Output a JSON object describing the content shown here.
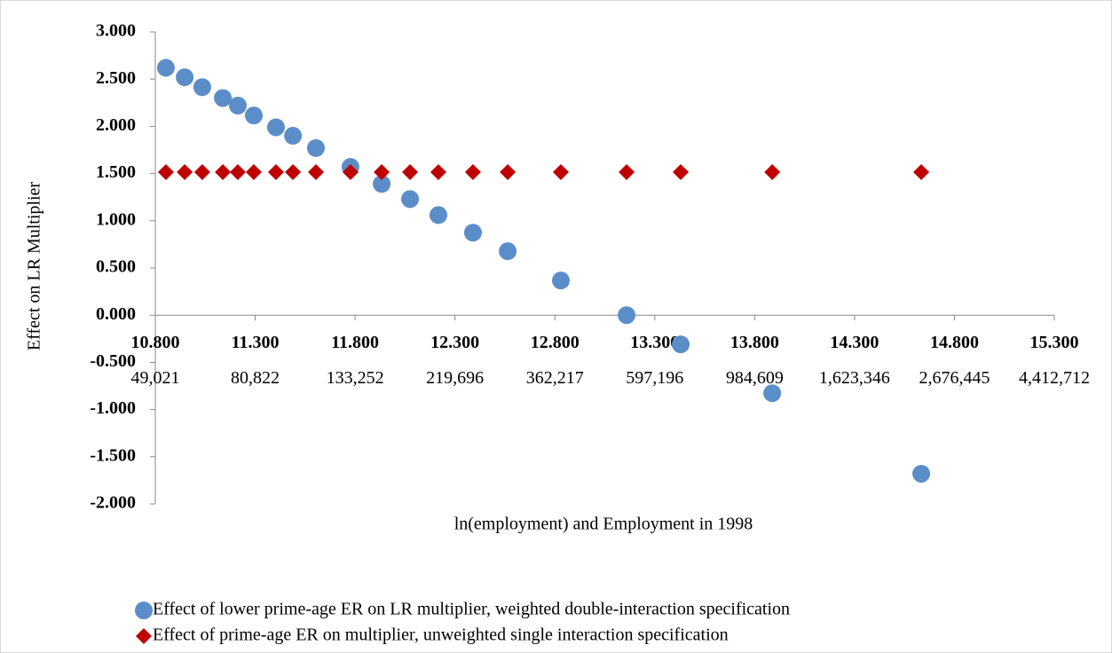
{
  "chart_data": {
    "type": "scatter",
    "x_label": "ln(employment) and Employment in 1998",
    "y_label": "Effect on LR Multiplier",
    "x": [
      10.853,
      10.947,
      11.035,
      11.138,
      11.213,
      11.293,
      11.404,
      11.489,
      11.604,
      11.777,
      11.933,
      12.075,
      12.217,
      12.39,
      12.564,
      12.83,
      13.159,
      13.43,
      13.888,
      14.634
    ],
    "series": [
      {
        "name": "Effect of lower prime-age ER on LR multiplier, weighted double-interaction specification",
        "color": "#5b8ec8",
        "marker": "circle",
        "values": [
          2.62,
          2.52,
          2.415,
          2.3,
          2.22,
          2.115,
          1.99,
          1.9,
          1.77,
          1.57,
          1.39,
          1.23,
          1.06,
          0.874,
          0.677,
          0.367,
          0.0,
          -0.31,
          -0.827,
          -1.68
        ]
      },
      {
        "name": "Effect of prime-age ER on multiplier, unweighted single interaction specification",
        "color": "#c00000",
        "marker": "diamond",
        "values": [
          1.515,
          1.515,
          1.515,
          1.515,
          1.515,
          1.515,
          1.515,
          1.515,
          1.515,
          1.515,
          1.515,
          1.515,
          1.515,
          1.515,
          1.515,
          1.515,
          1.515,
          1.515,
          1.515,
          1.515
        ]
      }
    ],
    "xlim": [
      10.8,
      15.3
    ],
    "xticks": [
      {
        "value": 10.8,
        "label": "10.800"
      },
      {
        "value": 11.3,
        "label": "11.300"
      },
      {
        "value": 11.8,
        "label": "11.800"
      },
      {
        "value": 12.3,
        "label": "12.300"
      },
      {
        "value": 12.8,
        "label": "12.800"
      },
      {
        "value": 13.3,
        "label": "13.300"
      },
      {
        "value": 13.8,
        "label": "13.800"
      },
      {
        "value": 14.3,
        "label": "14.300"
      },
      {
        "value": 14.8,
        "label": "14.800"
      },
      {
        "value": 15.3,
        "label": "15.300"
      }
    ],
    "xtick_secondary_labels": [
      "49,021",
      "80,822",
      "133,252",
      "219,696",
      "362,217",
      "597,196",
      "984,609",
      "1,623,346",
      "2,676,445",
      "4,412,712"
    ],
    "ylim": [
      -2,
      3
    ],
    "yticks": [
      {
        "value": 3,
        "label": "3.000"
      },
      {
        "value": 2.5,
        "label": "2.500"
      },
      {
        "value": 2,
        "label": "2.000"
      },
      {
        "value": 1.5,
        "label": "1.500"
      },
      {
        "value": 1,
        "label": "1.000"
      },
      {
        "value": 0.5,
        "label": "0.500"
      },
      {
        "value": 0,
        "label": "0.000"
      },
      {
        "value": -0.5,
        "label": "-0.500"
      },
      {
        "value": -1,
        "label": "-1.000"
      },
      {
        "value": -1.5,
        "label": "-1.500"
      },
      {
        "value": -2,
        "label": "-2.000"
      }
    ],
    "grid": false,
    "legend": "bottom"
  }
}
